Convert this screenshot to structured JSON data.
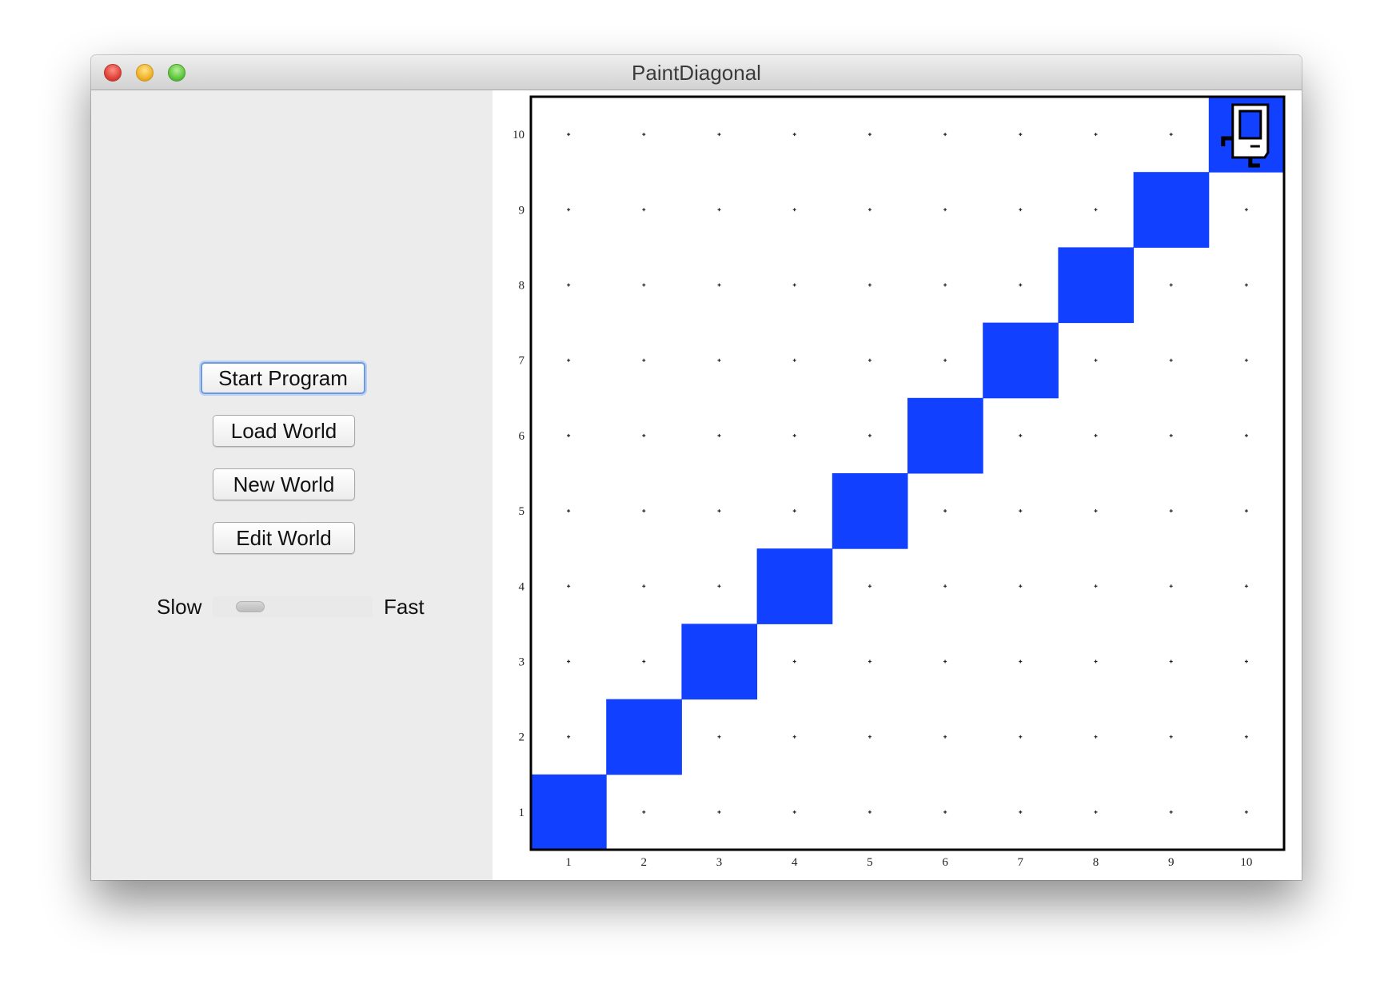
{
  "window": {
    "title": "PaintDiagonal"
  },
  "controls": {
    "start_label": "Start Program",
    "load_label": "Load World",
    "new_label": "New World",
    "edit_label": "Edit World",
    "slow_label": "Slow",
    "fast_label": "Fast",
    "speed_fraction": 0.15
  },
  "world": {
    "columns": 10,
    "rows": 10,
    "x_labels": [
      "1",
      "2",
      "3",
      "4",
      "5",
      "6",
      "7",
      "8",
      "9",
      "10"
    ],
    "y_labels": [
      "1",
      "2",
      "3",
      "4",
      "5",
      "6",
      "7",
      "8",
      "9",
      "10"
    ],
    "paint_color": "#1140ff",
    "painted_cells": [
      [
        1,
        1
      ],
      [
        2,
        2
      ],
      [
        3,
        3
      ],
      [
        4,
        4
      ],
      [
        5,
        5
      ],
      [
        6,
        6
      ],
      [
        7,
        7
      ],
      [
        8,
        8
      ],
      [
        9,
        9
      ],
      [
        10,
        10
      ]
    ],
    "karel": {
      "avenue": 10,
      "street": 10,
      "facing": "east",
      "icon": "karel-robot-icon"
    }
  }
}
